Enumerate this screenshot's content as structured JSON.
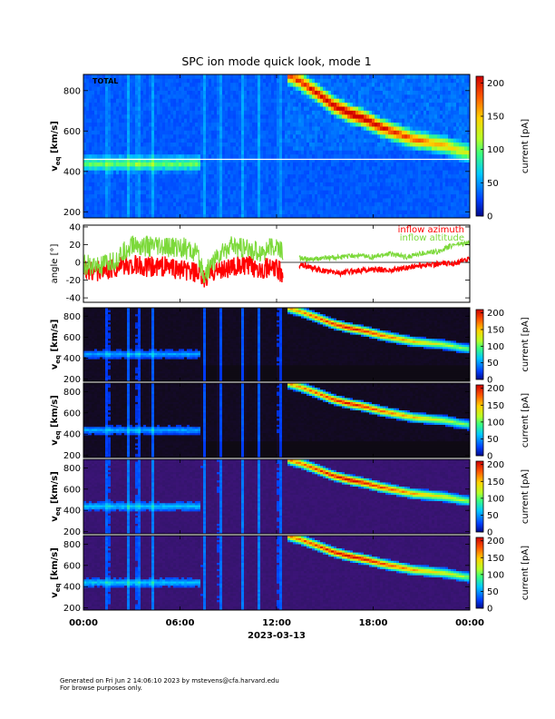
{
  "chart_data": {
    "type": "heatmap",
    "title": "SPC ion mode quick look, mode 1",
    "date_label": "2023-03-13",
    "time_ticks": [
      "00:00",
      "06:00",
      "12:00",
      "18:00",
      "00:00"
    ],
    "time_range_hours": [
      0,
      24
    ],
    "colorbar": {
      "label": "current [pA]",
      "range": [
        0,
        210
      ],
      "ticks": [
        0,
        50,
        100,
        150,
        200
      ]
    },
    "panels": [
      {
        "id": "total",
        "type": "heatmap",
        "tag": "TOTAL",
        "ylabel": "v",
        "ylabel_sub": "eq",
        "ylabel_unit": " [km/s]",
        "ylim": [
          170,
          880
        ],
        "yticks": [
          200,
          400,
          600,
          800
        ],
        "reference_line": 460,
        "style": "bright"
      },
      {
        "id": "angle",
        "type": "line",
        "ylabel": "angle [°]",
        "ylim": [
          -45,
          42
        ],
        "yticks": [
          -40,
          -20,
          0,
          20,
          40
        ],
        "series": [
          {
            "name": "inflow azimuth",
            "color": "#ff0000",
            "x": [
              0,
              1,
              2,
              3,
              4,
              5,
              6,
              7,
              7.5,
              8,
              9,
              10,
              11,
              12,
              12.5,
              13.5,
              14,
              15,
              16,
              17,
              18,
              19,
              20,
              21,
              22,
              23,
              24
            ],
            "y": [
              -8,
              -10,
              -5,
              -3,
              -6,
              -4,
              -8,
              -12,
              -20,
              -10,
              -6,
              -4,
              -6,
              -8,
              -14,
              -2,
              -5,
              -10,
              -12,
              -9,
              -8,
              -9,
              -6,
              -3,
              -2,
              -1,
              4
            ]
          },
          {
            "name": "inflow altitude",
            "color": "#7cd93a",
            "x": [
              0,
              1,
              2,
              3,
              4,
              5,
              6,
              7,
              7.5,
              8,
              9,
              10,
              11,
              12,
              12.5,
              13.5,
              14,
              15,
              16,
              17,
              18,
              19,
              20,
              21,
              22,
              23,
              24
            ],
            "y": [
              -2,
              -6,
              2,
              20,
              18,
              16,
              18,
              10,
              -15,
              0,
              18,
              15,
              12,
              18,
              10,
              5,
              3,
              5,
              6,
              8,
              6,
              10,
              6,
              10,
              12,
              20,
              22
            ]
          }
        ]
      },
      {
        "id": "sensor1",
        "type": "heatmap",
        "ylabel": "v",
        "ylabel_sub": "eq",
        "ylabel_unit": " [km/s]",
        "ylim": [
          180,
          880
        ],
        "yticks": [
          200,
          400,
          600,
          800
        ],
        "style": "dark"
      },
      {
        "id": "sensor2",
        "type": "heatmap",
        "ylabel": "v",
        "ylabel_sub": "eq",
        "ylabel_unit": " [km/s]",
        "ylim": [
          180,
          880
        ],
        "yticks": [
          200,
          400,
          600,
          800
        ],
        "style": "dark"
      },
      {
        "id": "sensor3",
        "type": "heatmap",
        "ylabel": "v",
        "ylabel_sub": "eq",
        "ylabel_unit": " [km/s]",
        "ylim": [
          180,
          880
        ],
        "yticks": [
          200,
          400,
          600,
          800
        ],
        "style": "purple"
      },
      {
        "id": "sensor4",
        "type": "heatmap",
        "ylabel": "v",
        "ylabel_sub": "eq",
        "ylabel_unit": " [km/s]",
        "ylim": [
          180,
          880
        ],
        "yticks": [
          200,
          400,
          600,
          800
        ],
        "style": "purple"
      }
    ],
    "features": {
      "core_band": {
        "value": 440,
        "until_hour": 7.2
      },
      "beam_track": {
        "x": [
          12.7,
          13.5,
          14.5,
          15.5,
          16.5,
          17.5,
          18.5,
          19.5,
          20.5,
          21.5,
          22.5,
          23.5,
          24
        ],
        "y": [
          880,
          845,
          790,
          730,
          690,
          660,
          620,
          590,
          560,
          545,
          530,
          500,
          490
        ]
      },
      "vertical_streaks_hours": [
        1.5,
        2.8,
        3.4,
        4.3,
        7.5,
        8.5,
        9.9,
        10.9,
        12.2
      ]
    }
  },
  "footer": {
    "line1": "Generated on Fri Jun  2 14:06:10 2023 by mstevens@cfa.harvard.edu",
    "line2": "For browse purposes only."
  }
}
